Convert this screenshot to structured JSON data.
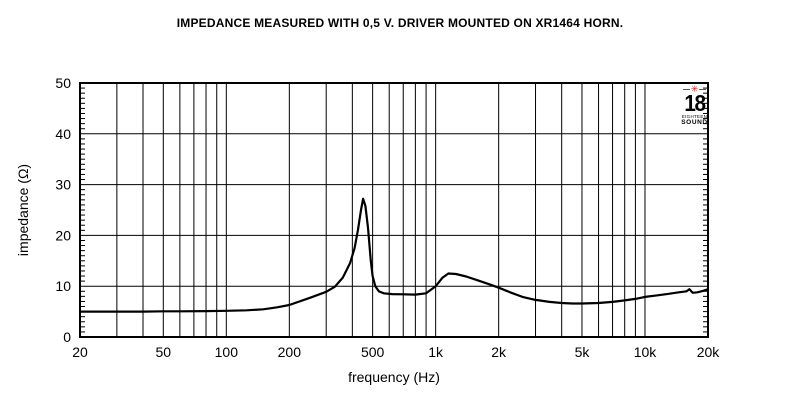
{
  "title": "IMPEDANCE MEASURED WITH 0,5 V. DRIVER MOUNTED ON XR1464 HORN.",
  "logo": {
    "star_glyph": "✳",
    "star_color": "#d42020",
    "number": "18",
    "brand_line1": "EIGHTEEN",
    "brand_line2": "SOUND"
  },
  "chart_data": {
    "type": "line",
    "title": "IMPEDANCE MEASURED WITH 0,5 V. DRIVER MOUNTED ON XR1464 HORN.",
    "xlabel": "frequency (Hz)",
    "ylabel": "impedance (Ω)",
    "x_scale": "log",
    "xlim": [
      20,
      20000
    ],
    "ylim": [
      0,
      50
    ],
    "grid": true,
    "line_color": "#000000",
    "x_ticks": [
      {
        "value": 20,
        "label": "20"
      },
      {
        "value": 50,
        "label": "50"
      },
      {
        "value": 100,
        "label": "100"
      },
      {
        "value": 200,
        "label": "200"
      },
      {
        "value": 500,
        "label": "500"
      },
      {
        "value": 1000,
        "label": "1k"
      },
      {
        "value": 2000,
        "label": "2k"
      },
      {
        "value": 5000,
        "label": "5k"
      },
      {
        "value": 10000,
        "label": "10k"
      },
      {
        "value": 20000,
        "label": "20k"
      }
    ],
    "y_ticks": [
      0,
      10,
      20,
      30,
      40,
      50
    ],
    "y_minor_tick_step": 1,
    "x_gridlines": [
      30,
      40,
      50,
      60,
      70,
      80,
      90,
      100,
      200,
      300,
      400,
      500,
      600,
      700,
      800,
      900,
      1000,
      2000,
      3000,
      4000,
      5000,
      6000,
      7000,
      8000,
      9000,
      10000
    ],
    "y_gridlines": [
      10,
      20,
      30,
      40
    ],
    "series": [
      {
        "name": "impedance",
        "points": [
          [
            20,
            5.0
          ],
          [
            30,
            5.0
          ],
          [
            40,
            5.0
          ],
          [
            50,
            5.05
          ],
          [
            60,
            5.05
          ],
          [
            80,
            5.1
          ],
          [
            100,
            5.15
          ],
          [
            125,
            5.25
          ],
          [
            150,
            5.45
          ],
          [
            175,
            5.85
          ],
          [
            200,
            6.3
          ],
          [
            250,
            7.7
          ],
          [
            300,
            8.9
          ],
          [
            330,
            9.9
          ],
          [
            360,
            11.7
          ],
          [
            390,
            14.5
          ],
          [
            410,
            17.5
          ],
          [
            425,
            21.0
          ],
          [
            440,
            25.0
          ],
          [
            450,
            27.2
          ],
          [
            462,
            25.8
          ],
          [
            475,
            21.5
          ],
          [
            490,
            15.0
          ],
          [
            500,
            12.0
          ],
          [
            515,
            10.0
          ],
          [
            535,
            9.0
          ],
          [
            565,
            8.6
          ],
          [
            620,
            8.45
          ],
          [
            700,
            8.4
          ],
          [
            800,
            8.35
          ],
          [
            900,
            8.6
          ],
          [
            1000,
            10.0
          ],
          [
            1080,
            11.7
          ],
          [
            1150,
            12.5
          ],
          [
            1250,
            12.4
          ],
          [
            1400,
            11.9
          ],
          [
            1600,
            11.1
          ],
          [
            1800,
            10.4
          ],
          [
            2000,
            9.7
          ],
          [
            2300,
            8.7
          ],
          [
            2600,
            7.9
          ],
          [
            3000,
            7.3
          ],
          [
            3500,
            6.9
          ],
          [
            4000,
            6.7
          ],
          [
            4500,
            6.6
          ],
          [
            5000,
            6.6
          ],
          [
            6000,
            6.7
          ],
          [
            7000,
            6.9
          ],
          [
            8000,
            7.2
          ],
          [
            9000,
            7.5
          ],
          [
            10000,
            7.9
          ],
          [
            11500,
            8.2
          ],
          [
            13000,
            8.5
          ],
          [
            14500,
            8.8
          ],
          [
            15800,
            9.0
          ],
          [
            16300,
            9.4
          ],
          [
            16900,
            8.7
          ],
          [
            17800,
            8.8
          ],
          [
            19000,
            9.1
          ],
          [
            20000,
            9.4
          ]
        ]
      }
    ]
  }
}
